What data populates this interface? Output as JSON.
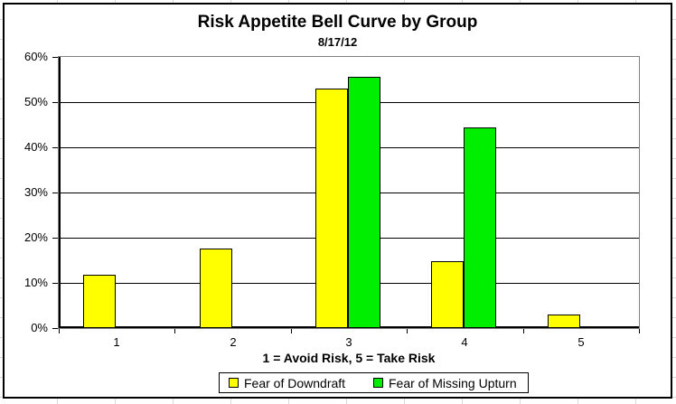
{
  "chart_data": {
    "type": "bar",
    "title": "Risk Appetite Bell Curve by Group",
    "subtitle": "8/17/12",
    "xlabel": "1 = Avoid Risk, 5 = Take Risk",
    "ylabel": "",
    "categories": [
      "1",
      "2",
      "3",
      "4",
      "5"
    ],
    "series": [
      {
        "name": "Fear of Downdraft",
        "color": "#FFFF00",
        "values": [
          11.8,
          17.6,
          52.9,
          14.7,
          2.9
        ]
      },
      {
        "name": "Fear of Missing Upturn",
        "color": "#00EE00",
        "values": [
          0,
          0,
          55.6,
          44.4,
          0
        ]
      }
    ],
    "ylim": [
      0,
      60
    ],
    "ytick_step": 10,
    "ytick_suffix": "%",
    "grid": true,
    "legend_position": "bottom-center",
    "plot_border_color": "#808080",
    "axis_color": "#000000",
    "background": "spreadsheet-cells"
  }
}
